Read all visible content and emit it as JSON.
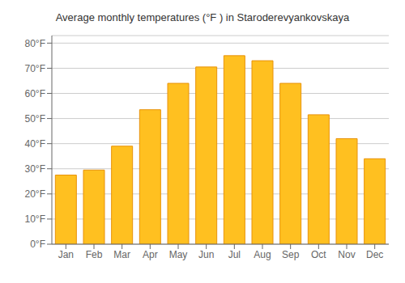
{
  "chart_data": {
    "type": "bar",
    "title": "Average monthly temperatures (°F ) in Staroderevyankovskaya",
    "categories": [
      "Jan",
      "Feb",
      "Mar",
      "Apr",
      "May",
      "Jun",
      "Jul",
      "Aug",
      "Sep",
      "Oct",
      "Nov",
      "Dec"
    ],
    "values": [
      27.5,
      29.5,
      39.0,
      53.5,
      64.0,
      70.5,
      75.0,
      73.0,
      64.0,
      51.5,
      42.0,
      34.0
    ],
    "color": "#FFC020",
    "ylim": [
      0,
      83
    ],
    "yticks": [
      {
        "value": 0,
        "label": "0°F"
      },
      {
        "value": 10,
        "label": "10°F"
      },
      {
        "value": 20,
        "label": "20°F"
      },
      {
        "value": 30,
        "label": "30°F"
      },
      {
        "value": 40,
        "label": "40°F"
      },
      {
        "value": 50,
        "label": "50°F"
      },
      {
        "value": 60,
        "label": "60°F"
      },
      {
        "value": 70,
        "label": "70°F"
      },
      {
        "value": 80,
        "label": "80°F"
      }
    ],
    "grid": true
  }
}
